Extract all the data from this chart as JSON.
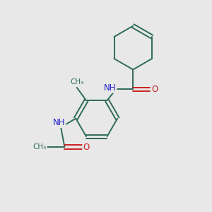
{
  "background_color": "#e8e8e8",
  "bond_color": "#2d6b5a",
  "nitrogen_color": "#2020cc",
  "oxygen_color": "#cc2020",
  "figsize": [
    3.0,
    3.0
  ],
  "dpi": 100,
  "xlim": [
    0,
    10
  ],
  "ylim": [
    0,
    10
  ]
}
